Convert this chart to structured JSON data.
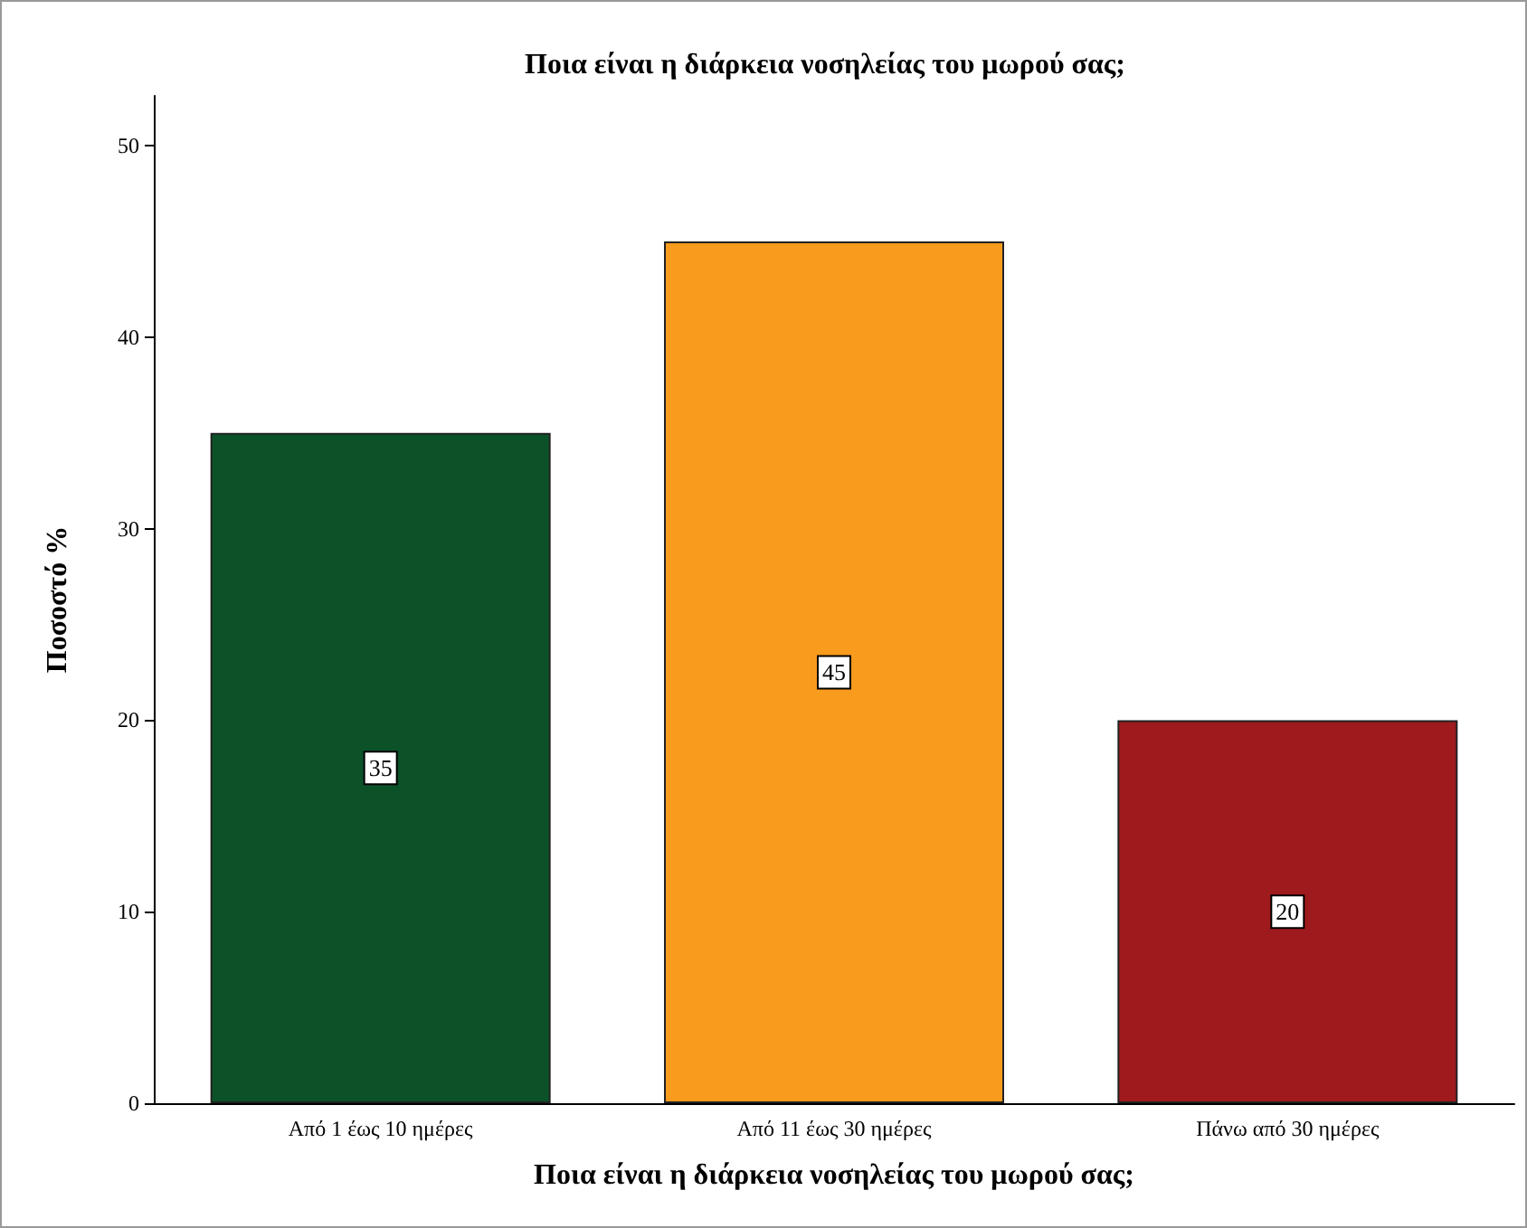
{
  "chart_data": {
    "type": "bar",
    "title": "Ποια είναι η διάρκεια νοσηλείας του μωρού σας;",
    "xlabel": "Ποια είναι η διάρκεια νοσηλείας του μωρού σας;",
    "ylabel": "Ποσοστό %",
    "categories": [
      "Από 1 έως 10 ημέρες",
      "Από 11 έως 30 ημέρες",
      "Πάνω από 30 ημέρες"
    ],
    "values": [
      35,
      45,
      20
    ],
    "colors": [
      "#0b5229",
      "#f99b1c",
      "#9e1a1d"
    ],
    "ylim": [
      0,
      52.6
    ],
    "yticks": [
      0,
      10,
      20,
      30,
      40,
      50
    ],
    "data_labels": true
  }
}
